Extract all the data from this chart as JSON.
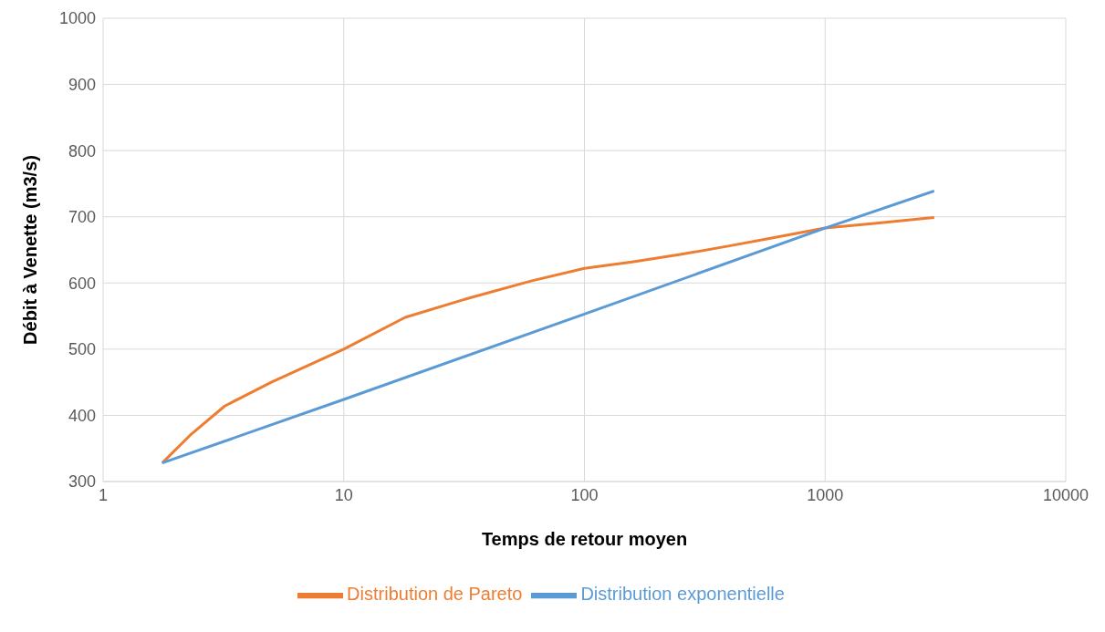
{
  "chart_data": {
    "type": "line",
    "xlabel": "Temps de retour moyen",
    "ylabel": "Débit à Venette (m3/s)",
    "log": "x",
    "xlim": [
      1,
      10000
    ],
    "xticks": [
      1,
      10,
      100,
      1000,
      10000
    ],
    "ylim": [
      300,
      1000
    ],
    "yticks": [
      300,
      400,
      500,
      600,
      700,
      800,
      900,
      1000
    ],
    "grid": true,
    "legend": "bottom",
    "marker": "none",
    "line_style": "solid",
    "series": [
      {
        "name": "Distribution de Pareto",
        "color": "#ed7d31",
        "x": [
          1.76,
          2.3,
          3.2,
          5,
          10,
          18,
          33,
          60,
          100,
          160,
          250,
          400,
          600,
          1000,
          1600,
          2840
        ],
        "values": [
          328,
          370,
          414,
          450,
          500,
          548,
          577,
          603,
          622,
          632,
          643,
          656,
          668,
          683,
          690,
          699
        ]
      },
      {
        "name": "Distribution exponentielle",
        "color": "#5b9bd5",
        "x": [
          1.76,
          10,
          100,
          1000,
          2840
        ],
        "values": [
          328,
          424,
          553,
          683,
          739
        ]
      }
    ]
  }
}
